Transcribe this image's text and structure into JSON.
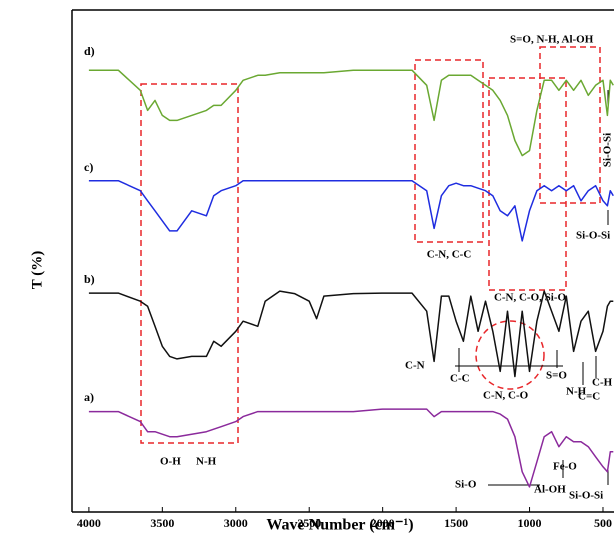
{
  "chart_data": {
    "type": "line",
    "x_label": "Wave Number (cm⁻¹)",
    "y_label": "T (%)",
    "xlim": [
      4115,
      425
    ],
    "ylim": [
      0,
      100
    ],
    "xticks": [
      4000,
      3500,
      3000,
      2500,
      2000,
      1500,
      1000,
      500
    ],
    "x": [
      4000,
      3800,
      3650,
      3600,
      3550,
      3500,
      3450,
      3400,
      3300,
      3200,
      3150,
      3100,
      3000,
      2950,
      2850,
      2800,
      2700,
      2600,
      2500,
      2450,
      2400,
      2200,
      2000,
      1800,
      1700,
      1650,
      1600,
      1550,
      1500,
      1450,
      1400,
      1350,
      1300,
      1250,
      1200,
      1150,
      1100,
      1050,
      1000,
      950,
      900,
      850,
      800,
      750,
      700,
      650,
      600,
      550,
      500,
      470,
      450,
      430
    ],
    "series": [
      {
        "name": "d)",
        "color": "#6aa832",
        "values": [
          88,
          88,
          84,
          80,
          82,
          79,
          78,
          78,
          79,
          80,
          81,
          81,
          84,
          86,
          87,
          87,
          87.5,
          87.5,
          87.5,
          87.5,
          87.5,
          88,
          88,
          88,
          85,
          78,
          86,
          87,
          87,
          87,
          87,
          86,
          85,
          84,
          82,
          79,
          74,
          71,
          72,
          80,
          86,
          86,
          84,
          86,
          84,
          86,
          83,
          85,
          86,
          79,
          86,
          85
        ]
      },
      {
        "name": "c)",
        "color": "#1f2de0",
        "values": [
          66,
          66,
          64,
          62,
          60,
          58,
          56,
          56,
          60,
          59,
          63,
          64,
          65,
          66,
          66,
          66,
          66,
          66,
          66,
          66,
          66,
          66,
          66,
          66,
          64,
          56.5,
          63,
          65,
          65.5,
          65,
          65,
          64.5,
          64,
          63,
          60,
          59,
          61,
          54,
          60,
          64,
          65,
          64,
          65,
          64,
          65,
          62,
          64,
          65,
          62,
          61,
          64,
          63
        ]
      },
      {
        "name": "b)",
        "color": "#111111",
        "values": [
          43.6,
          43.6,
          42,
          41,
          37,
          33,
          31,
          30.5,
          31,
          31,
          34,
          33,
          36,
          38,
          37,
          42,
          44,
          43.5,
          42,
          38.5,
          43,
          43.5,
          43.6,
          43.6,
          40,
          30,
          43,
          43,
          38,
          34,
          43,
          36,
          42,
          36,
          28,
          40,
          27,
          40,
          28,
          38,
          44,
          40,
          36,
          43,
          32,
          38,
          40,
          32,
          36,
          41,
          42,
          42
        ]
      },
      {
        "name": "a)",
        "color": "#8b2a9c",
        "values": [
          20,
          20,
          18,
          16,
          16,
          15.5,
          15,
          15,
          15.5,
          16,
          16.5,
          17,
          18,
          19,
          20,
          20,
          20,
          20,
          20,
          20,
          20,
          20,
          20.5,
          20.5,
          20.5,
          19,
          20,
          20,
          20,
          20,
          20,
          20,
          20,
          20,
          19.5,
          18.5,
          15,
          8,
          5,
          10,
          15,
          16,
          13,
          15,
          14,
          14,
          13,
          11,
          9,
          8,
          12,
          12
        ]
      }
    ],
    "annotations": [
      "S=O, N-H, Al-OH",
      "Si-O-Si",
      "C-N, C-C",
      "C-N, C-O, Si-O",
      "Si-O-Si",
      "C-N",
      "C-C",
      "C-N, C-O",
      "S=O",
      "N-H",
      "C=C",
      "C-H",
      "O-H",
      "N-H",
      "Si-O",
      "Al-OH",
      "Fe-O",
      "Si-O-Si"
    ]
  }
}
